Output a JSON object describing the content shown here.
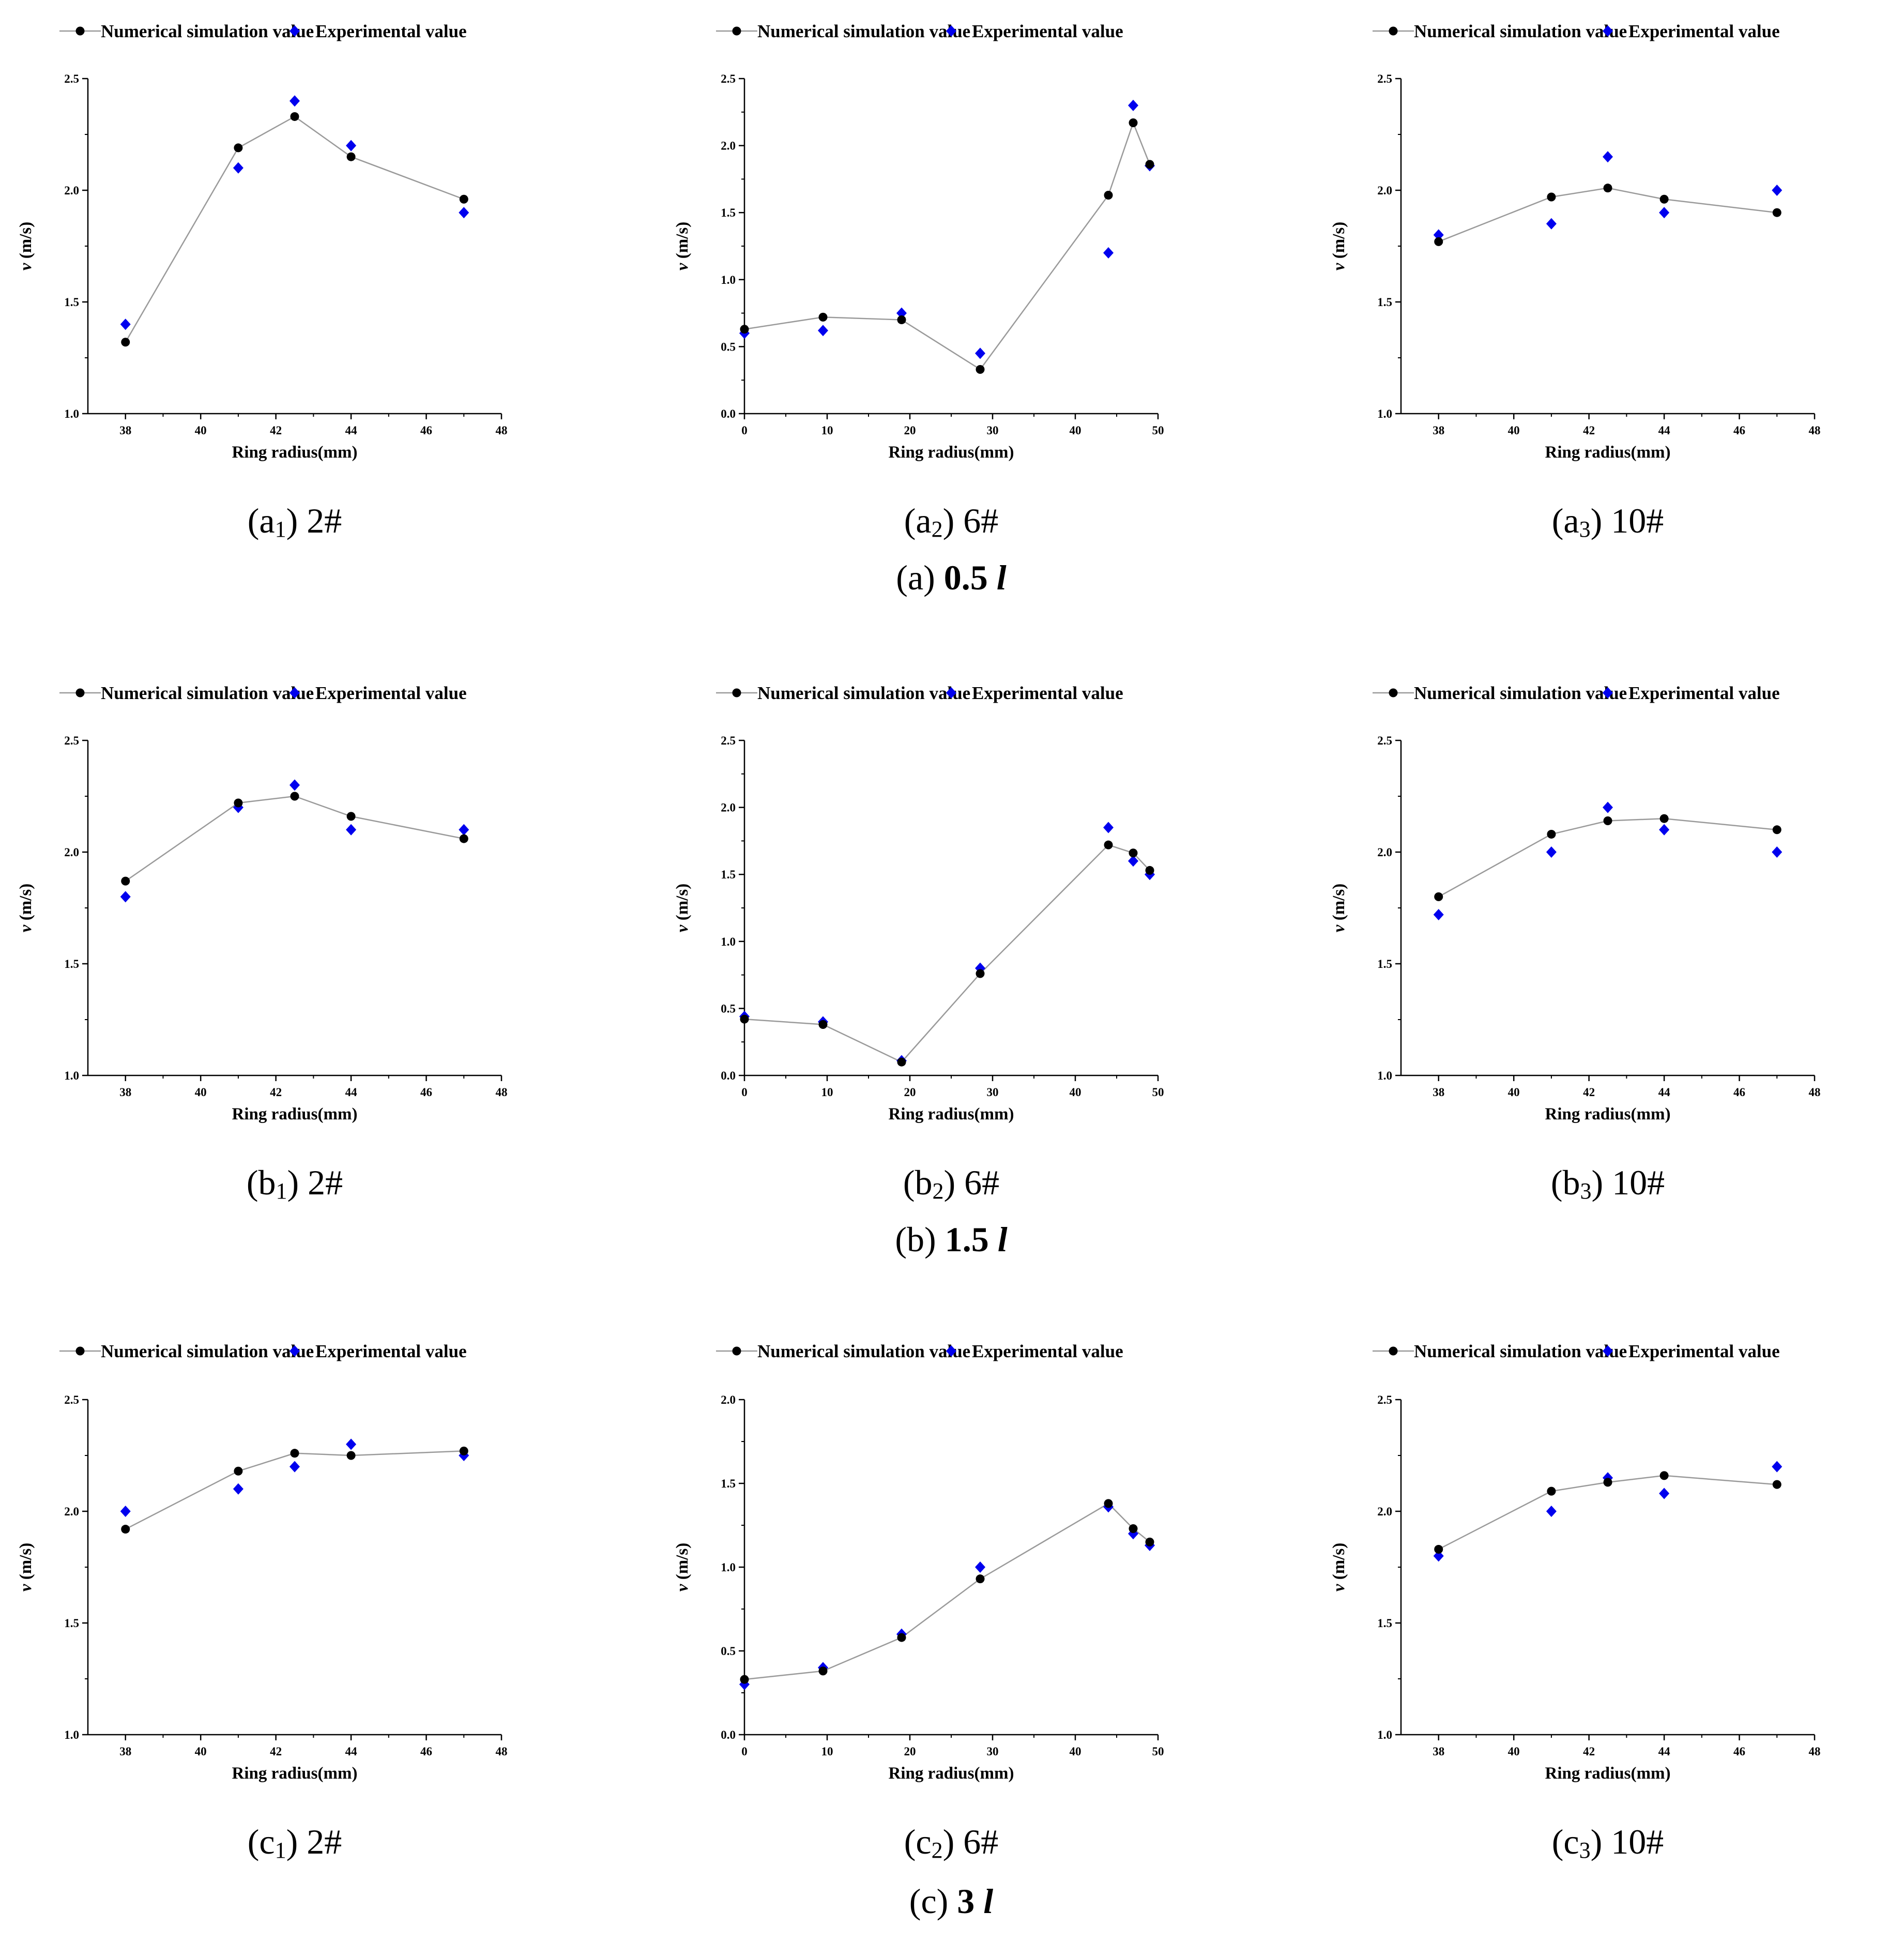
{
  "legend": {
    "numerical": "Numerical simulation value",
    "experimental": "Experimental value"
  },
  "colors": {
    "numerical": "#000000",
    "experimental": "#0000ee",
    "line": "#9a9a9a",
    "axis": "#000000"
  },
  "group_captions": [
    {
      "letter": "(a)",
      "value": "0.5",
      "unit": "l"
    },
    {
      "letter": "(b)",
      "value": "1.5",
      "unit": "l"
    },
    {
      "letter": "(c)",
      "value": "3",
      "unit": "l"
    }
  ],
  "chart_data": [
    {
      "id": "a1",
      "type": "scatter",
      "caption_letter": "(a",
      "caption_sub": "1",
      "caption_tail": ") 2#",
      "xlabel": "Ring radius(mm)",
      "ylabel_italic": "v",
      "ylabel_rest": " (m/s)",
      "xlim": [
        37,
        48
      ],
      "ylim": [
        1.0,
        2.5
      ],
      "xticks": [
        38,
        40,
        42,
        44,
        46,
        48
      ],
      "xtick_labels": [
        "38",
        "40",
        "42",
        "44",
        "46",
        "48"
      ],
      "yticks": [
        1.0,
        1.5,
        2.0,
        2.5
      ],
      "ytick_labels": [
        "1.0",
        "1.5",
        "2.0",
        "2.5"
      ],
      "series": [
        {
          "name": "Numerical simulation value",
          "x": [
            38,
            41,
            42.5,
            44,
            47
          ],
          "y": [
            1.32,
            2.19,
            2.33,
            2.15,
            1.96
          ]
        },
        {
          "name": "Experimental value",
          "x": [
            38,
            41,
            42.5,
            44,
            47
          ],
          "y": [
            1.4,
            2.1,
            2.4,
            2.2,
            1.9
          ]
        }
      ]
    },
    {
      "id": "a2",
      "type": "scatter",
      "caption_letter": "(a",
      "caption_sub": "2",
      "caption_tail": ") 6#",
      "xlabel": "Ring radius(mm)",
      "ylabel_italic": "v",
      "ylabel_rest": " (m/s)",
      "xlim": [
        0,
        50
      ],
      "ylim": [
        0.0,
        2.5
      ],
      "xticks": [
        0,
        10,
        20,
        30,
        40,
        50
      ],
      "xtick_labels": [
        "0",
        "10",
        "20",
        "30",
        "40",
        "50"
      ],
      "yticks": [
        0.0,
        0.5,
        1.0,
        1.5,
        2.0,
        2.5
      ],
      "ytick_labels": [
        "0.0",
        "0.5",
        "1.0",
        "1.5",
        "2.0",
        "2.5"
      ],
      "series": [
        {
          "name": "Numerical simulation value",
          "x": [
            0,
            9.5,
            19,
            28.5,
            44,
            47,
            49
          ],
          "y": [
            0.63,
            0.72,
            0.7,
            0.33,
            1.63,
            2.17,
            1.86
          ]
        },
        {
          "name": "Experimental value",
          "x": [
            0,
            9.5,
            19,
            28.5,
            44,
            47,
            49
          ],
          "y": [
            0.6,
            0.62,
            0.75,
            0.45,
            1.2,
            2.3,
            1.85
          ]
        }
      ]
    },
    {
      "id": "a3",
      "type": "scatter",
      "caption_letter": "(a",
      "caption_sub": "3",
      "caption_tail": ") 10#",
      "xlabel": "Ring radius(mm)",
      "ylabel_italic": "v",
      "ylabel_rest": " (m/s)",
      "xlim": [
        37,
        48
      ],
      "ylim": [
        1.0,
        2.5
      ],
      "xticks": [
        38,
        40,
        42,
        44,
        46,
        48
      ],
      "xtick_labels": [
        "38",
        "40",
        "42",
        "44",
        "46",
        "48"
      ],
      "yticks": [
        1.0,
        1.5,
        2.0,
        2.5
      ],
      "ytick_labels": [
        "1.0",
        "1.5",
        "2.0",
        "2.5"
      ],
      "series": [
        {
          "name": "Numerical simulation value",
          "x": [
            38,
            41,
            42.5,
            44,
            47
          ],
          "y": [
            1.77,
            1.97,
            2.01,
            1.96,
            1.9
          ]
        },
        {
          "name": "Experimental value",
          "x": [
            38,
            41,
            42.5,
            44,
            47
          ],
          "y": [
            1.8,
            1.85,
            2.15,
            1.9,
            2.0
          ]
        }
      ]
    },
    {
      "id": "b1",
      "type": "scatter",
      "caption_letter": "(b",
      "caption_sub": "1",
      "caption_tail": ") 2#",
      "xlabel": "Ring radius(mm)",
      "ylabel_italic": "v",
      "ylabel_rest": " (m/s)",
      "xlim": [
        37,
        48
      ],
      "ylim": [
        1.0,
        2.5
      ],
      "xticks": [
        38,
        40,
        42,
        44,
        46,
        48
      ],
      "xtick_labels": [
        "38",
        "40",
        "42",
        "44",
        "46",
        "48"
      ],
      "yticks": [
        1.0,
        1.5,
        2.0,
        2.5
      ],
      "ytick_labels": [
        "1.0",
        "1.5",
        "2.0",
        "2.5"
      ],
      "series": [
        {
          "name": "Numerical simulation value",
          "x": [
            38,
            41,
            42.5,
            44,
            47
          ],
          "y": [
            1.87,
            2.22,
            2.25,
            2.16,
            2.06
          ]
        },
        {
          "name": "Experimental value",
          "x": [
            38,
            41,
            42.5,
            44,
            47
          ],
          "y": [
            1.8,
            2.2,
            2.3,
            2.1,
            2.1
          ]
        }
      ]
    },
    {
      "id": "b2",
      "type": "scatter",
      "caption_letter": "(b",
      "caption_sub": "2",
      "caption_tail": ") 6#",
      "xlabel": "Ring radius(mm)",
      "ylabel_italic": "v",
      "ylabel_rest": " (m/s)",
      "xlim": [
        0,
        50
      ],
      "ylim": [
        0.0,
        2.5
      ],
      "xticks": [
        0,
        10,
        20,
        30,
        40,
        50
      ],
      "xtick_labels": [
        "0",
        "10",
        "20",
        "30",
        "40",
        "50"
      ],
      "yticks": [
        0.0,
        0.5,
        1.0,
        1.5,
        2.0,
        2.5
      ],
      "ytick_labels": [
        "0.0",
        "0.5",
        "1.0",
        "1.5",
        "2.0",
        "2.5"
      ],
      "series": [
        {
          "name": "Numerical simulation value",
          "x": [
            0,
            9.5,
            19,
            28.5,
            44,
            47,
            49
          ],
          "y": [
            0.42,
            0.38,
            0.1,
            0.76,
            1.72,
            1.66,
            1.53
          ]
        },
        {
          "name": "Experimental value",
          "x": [
            0,
            9.5,
            19,
            28.5,
            44,
            47,
            49
          ],
          "y": [
            0.44,
            0.4,
            0.11,
            0.8,
            1.85,
            1.6,
            1.5
          ]
        }
      ]
    },
    {
      "id": "b3",
      "type": "scatter",
      "caption_letter": "(b",
      "caption_sub": "3",
      "caption_tail": ") 10#",
      "xlabel": "Ring radius(mm)",
      "ylabel_italic": "v",
      "ylabel_rest": " (m/s)",
      "xlim": [
        37,
        48
      ],
      "ylim": [
        1.0,
        2.5
      ],
      "xticks": [
        38,
        40,
        42,
        44,
        46,
        48
      ],
      "xtick_labels": [
        "38",
        "40",
        "42",
        "44",
        "46",
        "48"
      ],
      "yticks": [
        1.0,
        1.5,
        2.0,
        2.5
      ],
      "ytick_labels": [
        "1.0",
        "1.5",
        "2.0",
        "2.5"
      ],
      "series": [
        {
          "name": "Numerical simulation value",
          "x": [
            38,
            41,
            42.5,
            44,
            47
          ],
          "y": [
            1.8,
            2.08,
            2.14,
            2.15,
            2.1
          ]
        },
        {
          "name": "Experimental value",
          "x": [
            38,
            41,
            42.5,
            44,
            47
          ],
          "y": [
            1.72,
            2.0,
            2.2,
            2.1,
            2.0
          ]
        }
      ]
    },
    {
      "id": "c1",
      "type": "scatter",
      "caption_letter": "(c",
      "caption_sub": "1",
      "caption_tail": ") 2#",
      "xlabel": "Ring radius(mm)",
      "ylabel_italic": "v",
      "ylabel_rest": " (m/s)",
      "xlim": [
        37,
        48
      ],
      "ylim": [
        1.0,
        2.5
      ],
      "xticks": [
        38,
        40,
        42,
        44,
        46,
        48
      ],
      "xtick_labels": [
        "38",
        "40",
        "42",
        "44",
        "46",
        "48"
      ],
      "yticks": [
        1.0,
        1.5,
        2.0,
        2.5
      ],
      "ytick_labels": [
        "1.0",
        "1.5",
        "2.0",
        "2.5"
      ],
      "series": [
        {
          "name": "Numerical simulation value",
          "x": [
            38,
            41,
            42.5,
            44,
            47
          ],
          "y": [
            1.92,
            2.18,
            2.26,
            2.25,
            2.27
          ]
        },
        {
          "name": "Experimental value",
          "x": [
            38,
            41,
            42.5,
            44,
            47
          ],
          "y": [
            2.0,
            2.1,
            2.2,
            2.3,
            2.25
          ]
        }
      ]
    },
    {
      "id": "c2",
      "type": "scatter",
      "caption_letter": "(c",
      "caption_sub": "2",
      "caption_tail": ") 6#",
      "xlabel": "Ring radius(mm)",
      "ylabel_italic": "v",
      "ylabel_rest": " (m/s)",
      "xlim": [
        0,
        50
      ],
      "ylim": [
        0.0,
        2.0
      ],
      "xticks": [
        0,
        10,
        20,
        30,
        40,
        50
      ],
      "xtick_labels": [
        "0",
        "10",
        "20",
        "30",
        "40",
        "50"
      ],
      "yticks": [
        0.0,
        0.5,
        1.0,
        1.5,
        2.0
      ],
      "ytick_labels": [
        "0.0",
        "0.5",
        "1.0",
        "1.5",
        "2.0"
      ],
      "series": [
        {
          "name": "Numerical simulation value",
          "x": [
            0,
            9.5,
            19,
            28.5,
            44,
            47,
            49
          ],
          "y": [
            0.33,
            0.38,
            0.58,
            0.93,
            1.38,
            1.23,
            1.15
          ]
        },
        {
          "name": "Experimental value",
          "x": [
            0,
            9.5,
            19,
            28.5,
            44,
            47,
            49
          ],
          "y": [
            0.3,
            0.4,
            0.6,
            1.0,
            1.36,
            1.2,
            1.13
          ]
        }
      ]
    },
    {
      "id": "c3",
      "type": "scatter",
      "caption_letter": "(c",
      "caption_sub": "3",
      "caption_tail": ") 10#",
      "xlabel": "Ring radius(mm)",
      "ylabel_italic": "v",
      "ylabel_rest": " (m/s)",
      "xlim": [
        37,
        48
      ],
      "ylim": [
        1.0,
        2.5
      ],
      "xticks": [
        38,
        40,
        42,
        44,
        46,
        48
      ],
      "xtick_labels": [
        "38",
        "40",
        "42",
        "44",
        "46",
        "48"
      ],
      "yticks": [
        1.0,
        1.5,
        2.0,
        2.5
      ],
      "ytick_labels": [
        "1.0",
        "1.5",
        "2.0",
        "2.5"
      ],
      "series": [
        {
          "name": "Numerical simulation value",
          "x": [
            38,
            41,
            42.5,
            44,
            47
          ],
          "y": [
            1.83,
            2.09,
            2.13,
            2.16,
            2.12
          ]
        },
        {
          "name": "Experimental value",
          "x": [
            38,
            41,
            42.5,
            44,
            47
          ],
          "y": [
            1.8,
            2.0,
            2.15,
            2.08,
            2.2
          ]
        }
      ]
    }
  ]
}
